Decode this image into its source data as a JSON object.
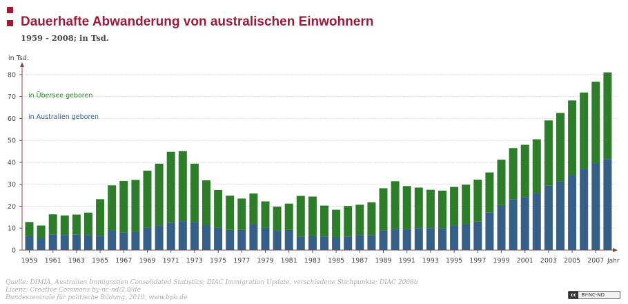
{
  "header": {
    "title": "Dauerhafte Abwanderung von australischen Einwohnern",
    "subtitle": "1959 - 2008; in Tsd."
  },
  "colors": {
    "brand": "#9b1c3a",
    "overseas": "#2e7d2a",
    "australia": "#355f87",
    "grid": "#d9d9d9",
    "axis": "#7a4a4a"
  },
  "chart_data": {
    "type": "bar",
    "stacked": true,
    "title": "Dauerhafte Abwanderung von australischen Einwohnern",
    "subtitle": "1959 - 2008; in Tsd.",
    "ylabel": "in Tsd.",
    "xlabel": "Jahr",
    "ylim": [
      0,
      85
    ],
    "yticks": [
      0,
      10,
      20,
      30,
      40,
      50,
      60,
      70,
      80
    ],
    "grid": true,
    "legend_position": "top-left",
    "categories": [
      "1959",
      "1960",
      "1961",
      "1962",
      "1963",
      "1964",
      "1965",
      "1966",
      "1967",
      "1968",
      "1969",
      "1970",
      "1971",
      "1972",
      "1973",
      "1974",
      "1975",
      "1976",
      "1977",
      "1978",
      "1979",
      "1980",
      "1981",
      "1982",
      "1983",
      "1984",
      "1985",
      "1986",
      "1987",
      "1988",
      "1989",
      "1990",
      "1991",
      "1992",
      "1993",
      "1994",
      "1995",
      "1996",
      "1997",
      "1998",
      "1999",
      "2000",
      "2001",
      "2002",
      "2003",
      "2004",
      "2005",
      "2006",
      "2007",
      "2008"
    ],
    "xtick_labels": [
      "1959",
      "1961",
      "1963",
      "1965",
      "1967",
      "1969",
      "1971",
      "1973",
      "1975",
      "1977",
      "1979",
      "1981",
      "1983",
      "1985",
      "1987",
      "1989",
      "1991",
      "1993",
      "1995",
      "1997",
      "1999",
      "2001",
      "2003",
      "2005",
      "2007"
    ],
    "series": [
      {
        "name": "in Australien geboren",
        "color": "#355f87",
        "values": [
          6.5,
          5.5,
          7.2,
          6.8,
          7,
          6.8,
          6.5,
          8.8,
          8,
          8.2,
          10.2,
          11.2,
          12.5,
          13.2,
          12.8,
          11.5,
          10.2,
          9.2,
          9.2,
          11.8,
          10.2,
          8.8,
          9.2,
          6.2,
          6.5,
          6.2,
          6,
          6.2,
          6.8,
          6.8,
          9,
          9.5,
          9.5,
          10,
          10,
          10,
          11.2,
          11.8,
          13,
          17.2,
          20.5,
          23.2,
          24.2,
          26,
          29.4,
          31.3,
          34,
          37,
          39.5,
          41.5
        ]
      },
      {
        "name": "in Übersee geboren",
        "color": "#2e7d2a",
        "values": [
          6.3,
          5.7,
          9.1,
          9,
          9.2,
          10.3,
          16.7,
          20.7,
          23.5,
          23.8,
          26,
          28.2,
          32.3,
          31.9,
          26.6,
          20.3,
          17.2,
          15.6,
          14.3,
          14,
          12,
          11,
          12,
          18.5,
          17.9,
          14.1,
          12.4,
          13.9,
          13.9,
          15,
          19.2,
          21.9,
          19.7,
          18.5,
          17.5,
          17.1,
          17.6,
          18,
          19.1,
          18.2,
          20.7,
          23.3,
          23.8,
          24.5,
          29.7,
          31.2,
          34.2,
          34.8,
          37.2,
          39.5
        ]
      }
    ]
  },
  "footer": {
    "source": "Quelle: DIMIA, Australian Immigration Consolidated Statistics; DIAC Immigration Update, verschiedene Stichpunkte; DIAC 2008b",
    "license": "Lizenz: Creative Commons by-nc-nd/2.0/de",
    "publisher": "Bundeszentrale für politische Bildung, 2010, www.bpb.de",
    "badge_cc": "cc",
    "badge_text": "BY-NC-ND"
  }
}
